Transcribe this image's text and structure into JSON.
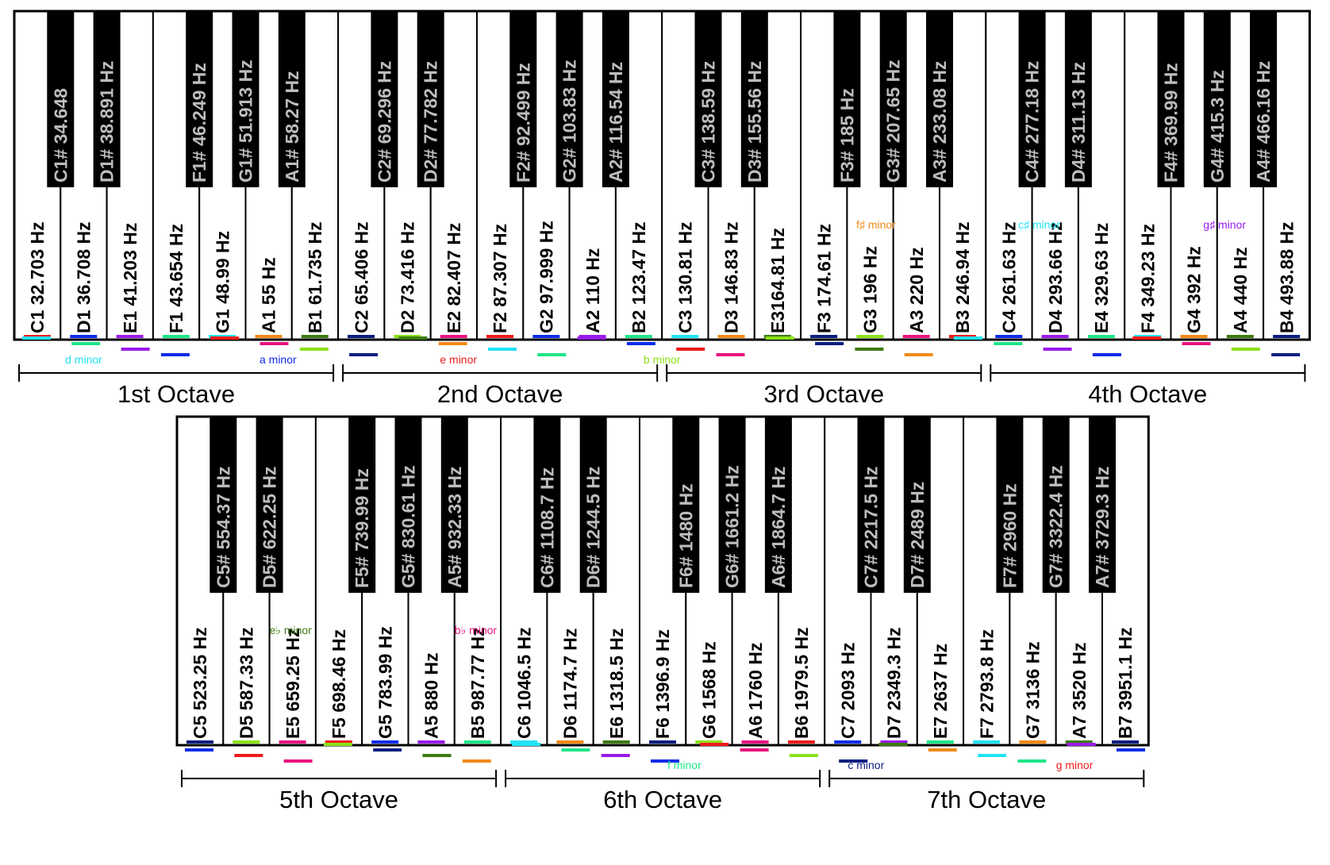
{
  "keyboards": [
    {
      "id": "upper",
      "white_keys": [
        "C1 32.703 Hz",
        "D1 36.708 Hz",
        "E1 41.203 Hz",
        "F1 43.654 Hz",
        "G1 48.99  Hz",
        "A1 55 Hz",
        "B1 61.735 Hz",
        "C2 65.406  Hz",
        "D2 73.416 Hz",
        "E2 82.407  Hz",
        "F2 87.307 Hz",
        "G2 97.999 Hz",
        "A2 110 Hz",
        "B2 123.47 Hz",
        "C3 130.81 Hz",
        "D3 146.83 Hz",
        "E3164.81 Hz",
        "F3 174.61 Hz",
        "G3 196 Hz",
        "A3 220 Hz",
        "B3 246.94 Hz",
        "C4 261.63 Hz",
        "D4 293.66 Hz",
        "E4 329.63 Hz",
        "F4 349.23 Hz",
        "G4 392 Hz",
        "A4 440 Hz",
        "B4 493.88 Hz"
      ],
      "black_keys": [
        {
          "after": 0,
          "label": "C1# 34.648"
        },
        {
          "after": 1,
          "label": "D1# 38.891 Hz"
        },
        {
          "after": 3,
          "label": "F1# 46.249 Hz"
        },
        {
          "after": 4,
          "label": "G1# 51.913 Hz"
        },
        {
          "after": 5,
          "label": "A1# 58.27 Hz"
        },
        {
          "after": 7,
          "label": "C2# 69.296 Hz"
        },
        {
          "after": 8,
          "label": "D2# 77.782 Hz"
        },
        {
          "after": 10,
          "label": "F2# 92.499 Hz"
        },
        {
          "after": 11,
          "label": "G2# 103.83 Hz"
        },
        {
          "after": 12,
          "label": "A2# 116.54 Hz"
        },
        {
          "after": 14,
          "label": "C3# 138.59 Hz"
        },
        {
          "after": 15,
          "label": "D3# 155.56 Hz"
        },
        {
          "after": 17,
          "label": "F3# 185 Hz"
        },
        {
          "after": 18,
          "label": "G3# 207.65 Hz"
        },
        {
          "after": 19,
          "label": "A3# 233.08 Hz"
        },
        {
          "after": 21,
          "label": "C4# 277.18 Hz"
        },
        {
          "after": 22,
          "label": "D4# 311.13 Hz"
        },
        {
          "after": 24,
          "label": "F4# 369.99 Hz"
        },
        {
          "after": 25,
          "label": "G4# 415.3 Hz"
        },
        {
          "after": 26,
          "label": "A4# 466.16 Hz"
        }
      ],
      "octaves": [
        {
          "label": "1st Octave",
          "from": 0,
          "to": 7
        },
        {
          "label": "2nd Octave",
          "from": 7,
          "to": 14
        },
        {
          "label": "3rd Octave",
          "from": 14,
          "to": 21
        },
        {
          "label": "4th Octave",
          "from": 21,
          "to": 28
        }
      ],
      "scale_labels": [
        {
          "text": "d minor",
          "key": 1.1,
          "color": "#21e3f5"
        },
        {
          "text": "a minor",
          "key": 5.3,
          "color": "#0f2ce8"
        },
        {
          "text": "e minor",
          "key": 9.2,
          "color": "#ee1b1b"
        },
        {
          "text": "b minor",
          "key": 13.6,
          "color": "#8be21a"
        },
        {
          "text": "f♯ minor",
          "key": 18.2,
          "color": "#f08a18",
          "band": "key"
        },
        {
          "text": "c♯ minor",
          "key": 21.7,
          "color": "#21e3f5",
          "band": "key"
        },
        {
          "text": "g♯ minor",
          "key": 25.7,
          "color": "#9a1ae8",
          "band": "key"
        }
      ]
    },
    {
      "id": "lower",
      "white_keys": [
        "C5 523.25 Hz",
        "D5 587.33 Hz",
        "E5 659.25 Hz",
        "F5 698.46 Hz",
        "G5 783.99 Hz",
        "A5 880 Hz",
        "B5 987.77 Hz",
        "C6 1046.5 Hz",
        "D6 1174.7 Hz",
        "E6 1318.5 Hz",
        "F6 1396.9 Hz",
        "G6 1568 Hz",
        "A6 1760 Hz",
        "B6 1979.5 Hz",
        "C7 2093 Hz",
        "D7 2349.3 Hz",
        "E7 2637 Hz",
        "F7 2793.8 Hz",
        "G7 3136 Hz",
        "A7 3520 Hz",
        "B7 3951.1 Hz"
      ],
      "black_keys": [
        {
          "after": 0,
          "label": "C5# 554.37 Hz"
        },
        {
          "after": 1,
          "label": "D5# 622.25 Hz"
        },
        {
          "after": 3,
          "label": "F5# 739.99 Hz"
        },
        {
          "after": 4,
          "label": "G5# 830.61 Hz"
        },
        {
          "after": 5,
          "label": "A5# 932.33 Hz"
        },
        {
          "after": 7,
          "label": "C6# 1108.7 Hz"
        },
        {
          "after": 8,
          "label": "D6# 1244.5 Hz"
        },
        {
          "after": 10,
          "label": "F6# 1480 Hz"
        },
        {
          "after": 11,
          "label": "G6# 1661.2 Hz"
        },
        {
          "after": 12,
          "label": "A6# 1864.7 Hz"
        },
        {
          "after": 14,
          "label": "C7# 2217.5 Hz"
        },
        {
          "after": 15,
          "label": "D7# 2489 Hz"
        },
        {
          "after": 17,
          "label": "F7# 2960 Hz"
        },
        {
          "after": 18,
          "label": "G7# 3322.4 Hz"
        },
        {
          "after": 19,
          "label": "A7# 3729.3 Hz"
        }
      ],
      "octaves": [
        {
          "label": "5th Octave",
          "from": 0,
          "to": 7
        },
        {
          "label": "6th Octave",
          "from": 7,
          "to": 14
        },
        {
          "label": "7th Octave",
          "from": 14,
          "to": 21
        }
      ],
      "scale_labels": [
        {
          "text": "e♭ minor",
          "key": 2.0,
          "color": "#3d7a10",
          "band": "key"
        },
        {
          "text": "b♭ minor",
          "key": 6.0,
          "color": "#e8137f",
          "band": "key"
        },
        {
          "text": "f minor",
          "key": 10.6,
          "color": "#1ee688"
        },
        {
          "text": "c minor",
          "key": 14.5,
          "color": "#0a1e80"
        },
        {
          "text": "g minor",
          "key": 19.0,
          "color": "#ee1b1b"
        }
      ]
    }
  ]
}
